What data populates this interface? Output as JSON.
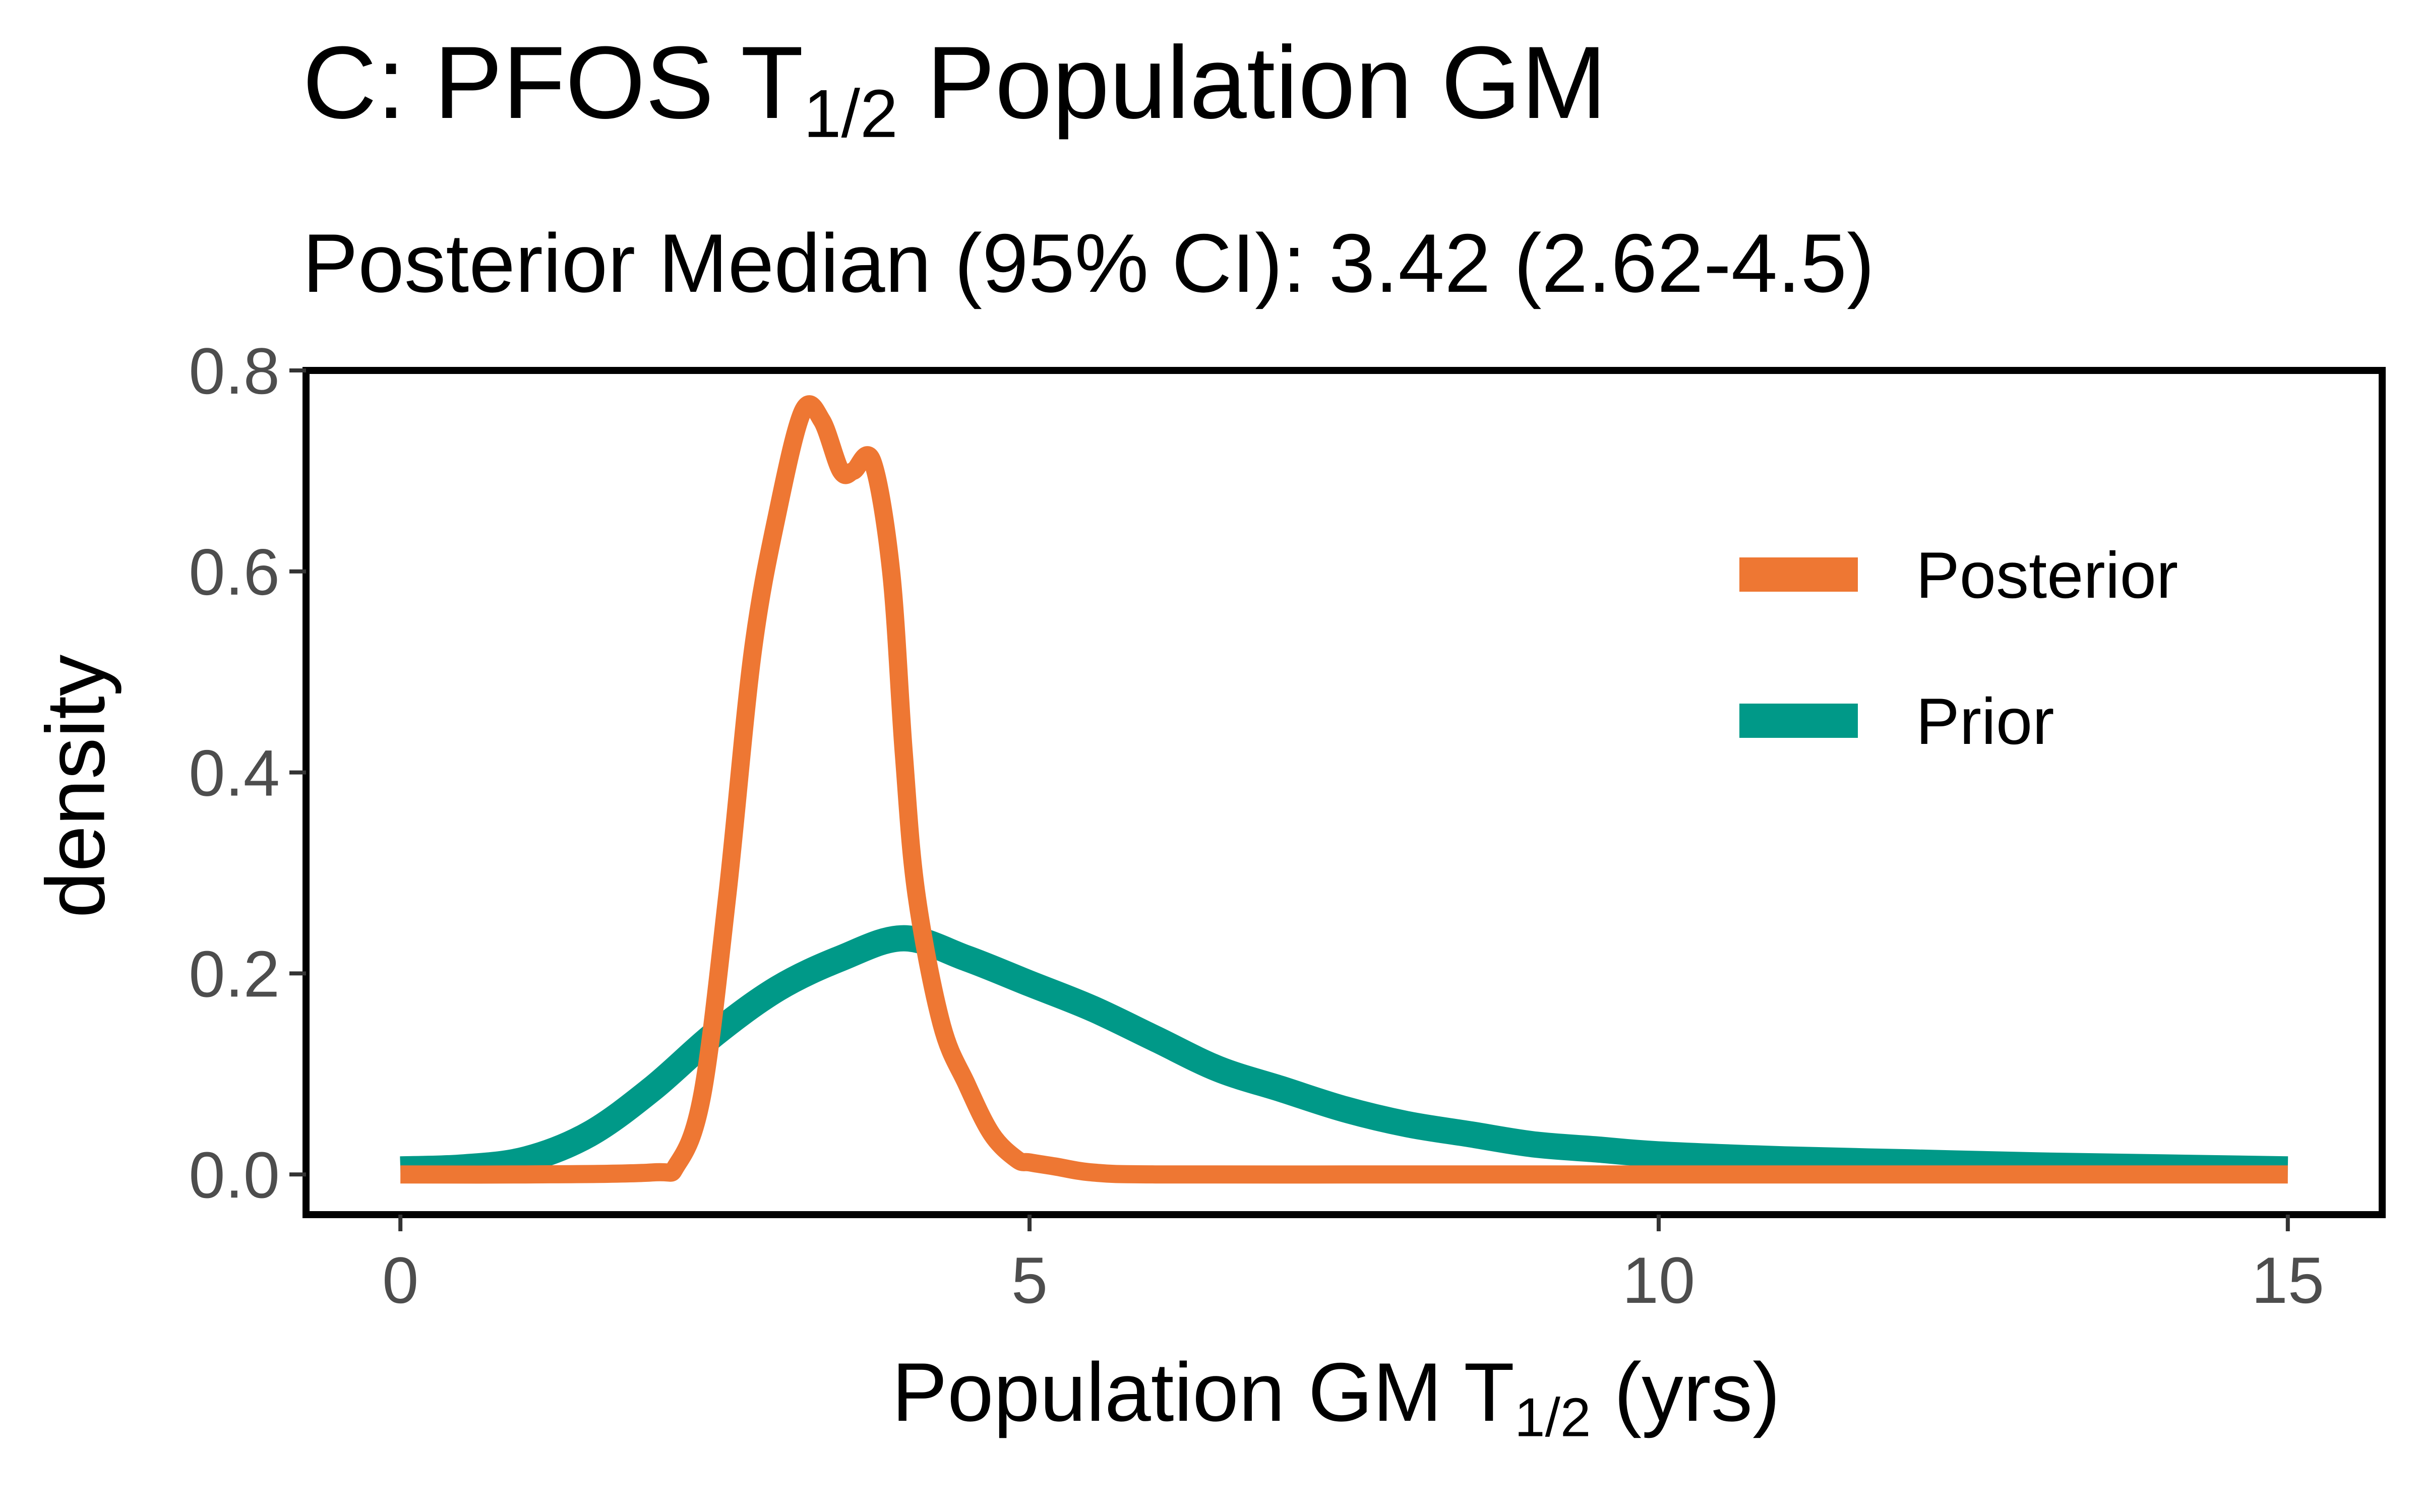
{
  "header": {
    "title_main": "C: PFOS T",
    "title_sub": "1/2",
    "title_end": " Population GM",
    "subtitle": "Posterior Median (95% CI): 3.42 (2.62-4.5)"
  },
  "axes": {
    "x_label_main": "Population GM T",
    "x_label_sub": "1/2",
    "x_label_end": " (yrs)",
    "y_label": "density"
  },
  "chart_data": {
    "type": "line",
    "xlabel": "Population GM T1/2 (yrs)",
    "ylabel": "density",
    "xlim": [
      -0.75,
      15.75
    ],
    "ylim": [
      -0.04,
      0.8
    ],
    "xticks": [
      0,
      5,
      10,
      15
    ],
    "xtick_labels": [
      "0",
      "5",
      "10",
      "15"
    ],
    "yticks": [
      0.0,
      0.2,
      0.4,
      0.6,
      0.8
    ],
    "ytick_labels": [
      "0.0",
      "0.2",
      "0.4",
      "0.6",
      "0.8"
    ],
    "grid": false,
    "legend_position": "top-right",
    "series": [
      {
        "name": "Prior",
        "color": "#009988",
        "x": [
          0,
          0.5,
          1.0,
          1.5,
          2.0,
          2.5,
          3.0,
          3.5,
          4.0,
          4.5,
          5.0,
          5.5,
          6.0,
          6.5,
          7.0,
          7.5,
          8.0,
          8.5,
          9.0,
          9.5,
          10.0,
          11.0,
          12.0,
          13.0,
          14.0,
          15.0
        ],
        "y": [
          0.005,
          0.007,
          0.015,
          0.04,
          0.085,
          0.14,
          0.185,
          0.215,
          0.235,
          0.215,
          0.19,
          0.165,
          0.135,
          0.105,
          0.085,
          0.065,
          0.05,
          0.04,
          0.03,
          0.025,
          0.02,
          0.015,
          0.012,
          0.009,
          0.007,
          0.005
        ]
      },
      {
        "name": "Posterior",
        "color": "#EE7733",
        "x": [
          0,
          1.0,
          2.0,
          2.2,
          2.4,
          2.6,
          2.8,
          3.0,
          3.2,
          3.35,
          3.5,
          3.6,
          3.75,
          3.9,
          4.0,
          4.1,
          4.3,
          4.5,
          4.7,
          4.9,
          5.0,
          5.2,
          5.5,
          6.0,
          8.0,
          10.0,
          12.0,
          15.0
        ],
        "y": [
          0.0,
          0.0,
          0.002,
          0.01,
          0.08,
          0.28,
          0.52,
          0.66,
          0.76,
          0.75,
          0.7,
          0.7,
          0.71,
          0.6,
          0.42,
          0.28,
          0.15,
          0.09,
          0.04,
          0.015,
          0.012,
          0.008,
          0.002,
          0.0,
          0.0,
          0.0,
          0.0,
          0.0
        ]
      }
    ]
  }
}
